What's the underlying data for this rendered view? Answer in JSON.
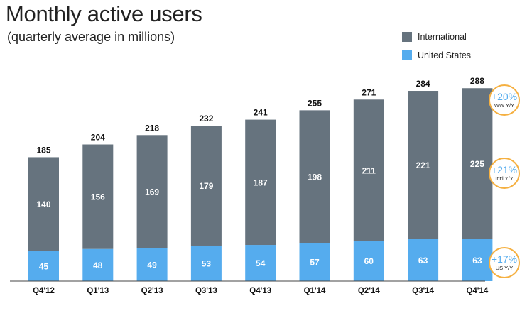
{
  "title": "Monthly active users",
  "subtitle": "(quarterly average in millions)",
  "legend": [
    {
      "label": "International",
      "color": "#66737e"
    },
    {
      "label": "United States",
      "color": "#55acee"
    }
  ],
  "badges": [
    {
      "pct": "+20%",
      "label": "WW Y/Y"
    },
    {
      "pct": "+21%",
      "label": "Int'l Y/Y"
    },
    {
      "pct": "+17%",
      "label": "US Y/Y"
    }
  ],
  "chart_data": {
    "type": "bar",
    "stacked": true,
    "categories": [
      "Q4'12",
      "Q1'13",
      "Q2'13",
      "Q3'13",
      "Q4'13",
      "Q1'14",
      "Q2'14",
      "Q3'14",
      "Q4'14"
    ],
    "series": [
      {
        "name": "United States",
        "color": "#55acee",
        "values": [
          45,
          48,
          49,
          53,
          54,
          57,
          60,
          63,
          63
        ]
      },
      {
        "name": "International",
        "color": "#66737e",
        "values": [
          140,
          156,
          169,
          179,
          187,
          198,
          211,
          221,
          225
        ]
      }
    ],
    "totals": [
      185,
      204,
      218,
      232,
      241,
      255,
      271,
      284,
      288
    ],
    "title": "Monthly active users",
    "subtitle": "(quarterly average in millions)",
    "xlabel": "",
    "ylabel": "",
    "ylim": [
      0,
      300
    ],
    "grid": false,
    "legend_position": "top-right"
  }
}
